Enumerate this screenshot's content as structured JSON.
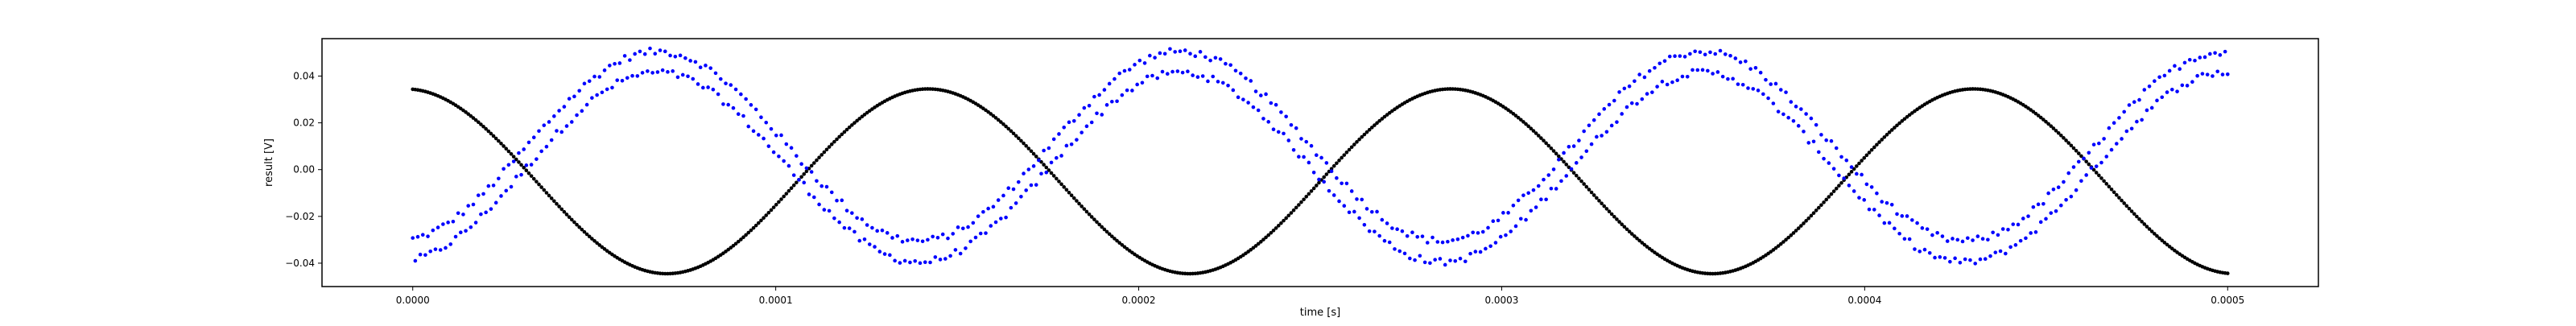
{
  "chart_data": {
    "type": "scatter",
    "title": "",
    "xlabel": "time [s]",
    "ylabel": "result [V]",
    "xlim": [
      -2.5e-05,
      0.000525
    ],
    "ylim": [
      -0.05,
      0.056
    ],
    "grid": false,
    "x_ticks": [
      "0.0000",
      "0.0001",
      "0.0002",
      "0.0003",
      "0.0004",
      "0.0005"
    ],
    "x_tick_values": [
      0,
      0.0001,
      0.0002,
      0.0003,
      0.0004,
      0.0005
    ],
    "y_ticks": [
      "−0.04",
      "−0.02",
      "0.00",
      "0.02",
      "0.04"
    ],
    "y_tick_values": [
      -0.04,
      -0.02,
      0,
      0.02,
      0.04
    ],
    "x_range": [
      0,
      0.0005
    ],
    "series": [
      {
        "color": "#000000",
        "marker": "dot",
        "point_count": 720,
        "shape": "cosine",
        "offset": -0.005,
        "amplitude": 0.0395,
        "period": 0.000144,
        "phase_x": 7e-05,
        "sign": -1,
        "noise": 0.0
      },
      {
        "color": "#0000ff",
        "marker": "dot",
        "point_count": 720,
        "shape": "two-branch sine",
        "offset": 0.0055,
        "amplitude": 0.0405,
        "period": 0.000144,
        "phase_x": 3.14e-05,
        "branch_split": 0.0045,
        "noise": 0.0015
      }
    ]
  }
}
